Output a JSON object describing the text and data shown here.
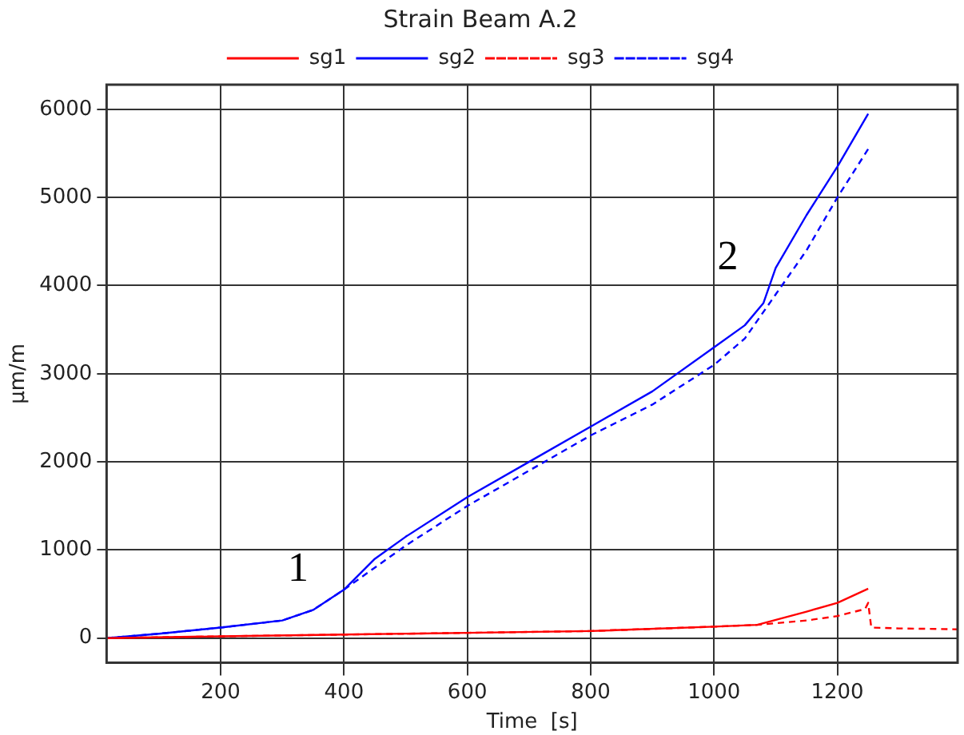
{
  "chart_data": {
    "type": "line",
    "title": "Strain Beam A.2",
    "xlabel": "Time  [s]",
    "ylabel": "µm/m",
    "xlim": [
      15,
      1395
    ],
    "xticks": [
      200,
      400,
      600,
      800,
      1000,
      1200
    ],
    "ylim": [
      -280,
      6280
    ],
    "yticks": [
      0,
      1000,
      2000,
      3000,
      4000,
      5000,
      6000
    ],
    "grid": true,
    "legend": "top",
    "marker": "none",
    "annotations": [
      "1",
      "2"
    ],
    "series": [
      {
        "name": "sg1",
        "color": "#ff0000",
        "line_style": "solid",
        "x": [
          15,
          200,
          400,
          600,
          800,
          1000,
          1070,
          1150,
          1200,
          1250
        ],
        "values": [
          0,
          20,
          40,
          60,
          80,
          130,
          150,
          300,
          400,
          560
        ]
      },
      {
        "name": "sg2",
        "color": "#0000ff",
        "line_style": "solid",
        "x": [
          15,
          100,
          200,
          300,
          350,
          400,
          450,
          500,
          600,
          700,
          800,
          900,
          1000,
          1050,
          1080,
          1100,
          1150,
          1200,
          1250
        ],
        "values": [
          0,
          50,
          120,
          200,
          320,
          550,
          900,
          1150,
          1600,
          2000,
          2400,
          2800,
          3300,
          3550,
          3800,
          4200,
          4800,
          5350,
          5950
        ]
      },
      {
        "name": "sg3",
        "color": "#ff0000",
        "line_style": "dashed",
        "x": [
          15,
          200,
          400,
          600,
          800,
          1000,
          1070,
          1150,
          1200,
          1245,
          1250,
          1255,
          1300,
          1395
        ],
        "values": [
          0,
          20,
          40,
          60,
          80,
          130,
          150,
          200,
          250,
          330,
          400,
          120,
          110,
          100
        ]
      },
      {
        "name": "sg4",
        "color": "#0000ff",
        "line_style": "dashed",
        "x": [
          15,
          100,
          200,
          300,
          350,
          400,
          450,
          500,
          600,
          700,
          800,
          900,
          1000,
          1050,
          1100,
          1150,
          1200,
          1250
        ],
        "values": [
          0,
          50,
          120,
          200,
          320,
          550,
          800,
          1050,
          1500,
          1900,
          2300,
          2650,
          3100,
          3400,
          3900,
          4400,
          5000,
          5550
        ]
      }
    ]
  }
}
